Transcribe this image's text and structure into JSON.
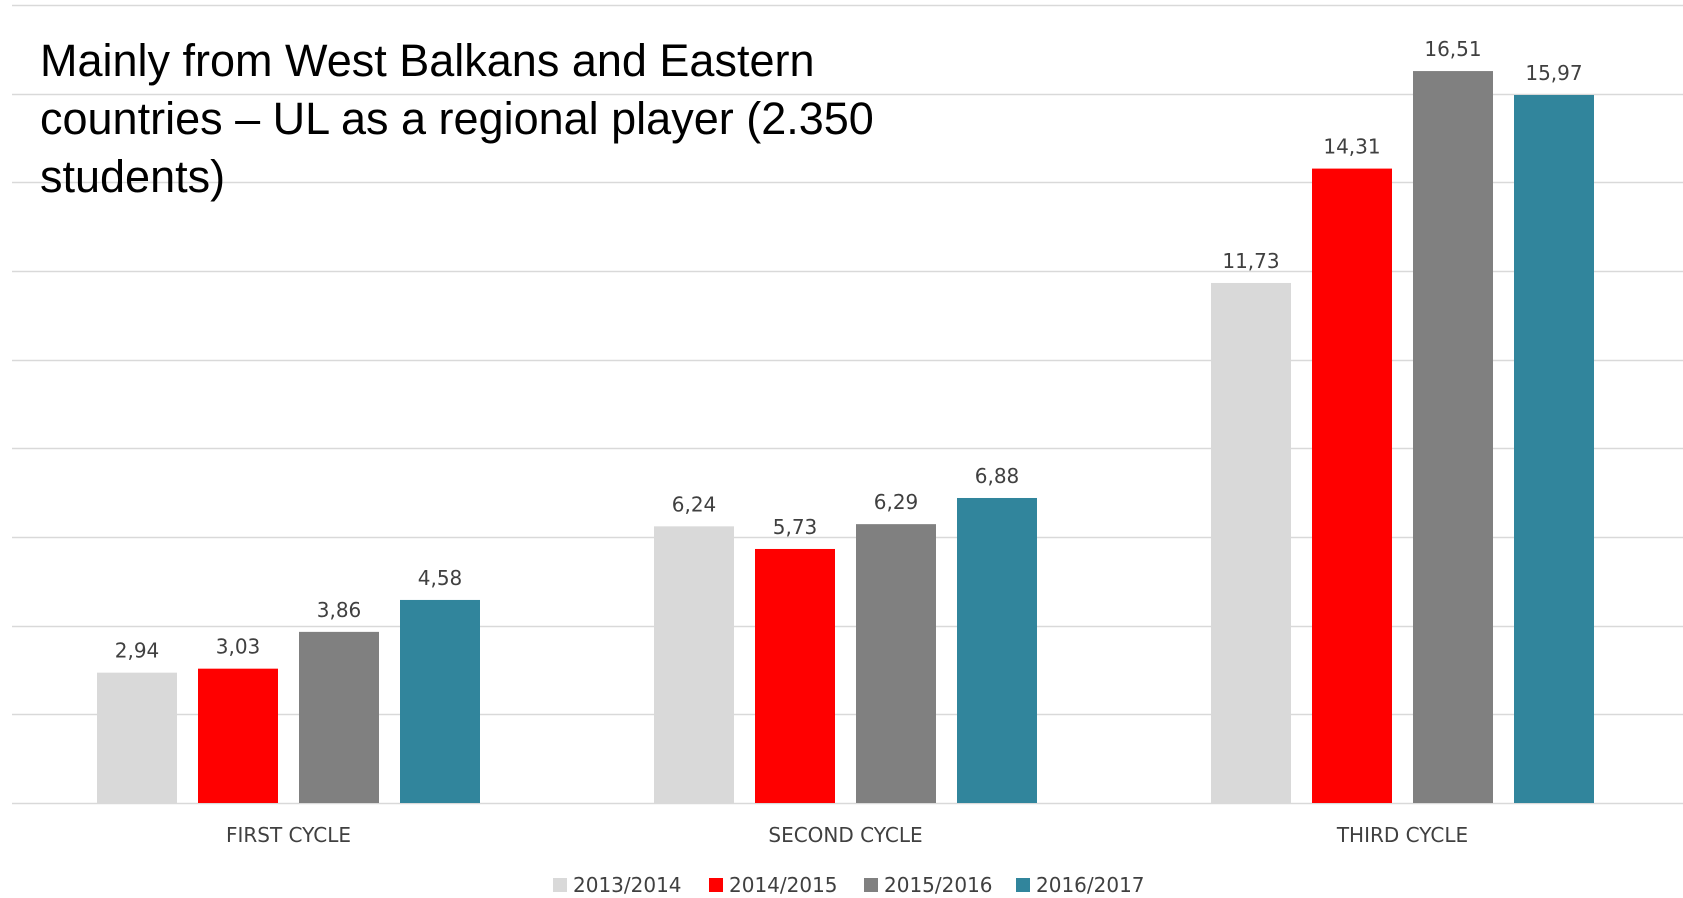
{
  "chart_data": {
    "type": "bar",
    "title_lines": [
      "Mainly from West Balkans and Eastern",
      "countries – UL as a regional player (2.350",
      "students)"
    ],
    "categories": [
      "FIRST CYCLE",
      "SECOND CYCLE",
      "THIRD CYCLE"
    ],
    "series": [
      {
        "name": "2013/2014",
        "color": "#d9d9d9",
        "values": [
          2.94,
          6.24,
          11.73
        ],
        "labels": [
          "2,94",
          "6,24",
          "11,73"
        ]
      },
      {
        "name": "2014/2015",
        "color": "#ff0000",
        "values": [
          3.03,
          5.73,
          14.31
        ],
        "labels": [
          "3,03",
          "5,73",
          "14,31"
        ]
      },
      {
        "name": "2015/2016",
        "color": "#808080",
        "values": [
          3.86,
          6.29,
          16.51
        ],
        "labels": [
          "3,86",
          "6,29",
          "16,51"
        ]
      },
      {
        "name": "2016/2017",
        "color": "#31859c",
        "values": [
          4.58,
          6.88,
          15.97
        ],
        "labels": [
          "4,58",
          "6,88",
          "15,97"
        ]
      }
    ],
    "xlabel": "",
    "ylabel": "",
    "ylim": [
      0,
      18
    ],
    "ytick_step": 2,
    "grid": true,
    "legend_position": "bottom-center",
    "colors": {
      "grid": "#d9d9d9",
      "axis_text": "#404040"
    }
  }
}
